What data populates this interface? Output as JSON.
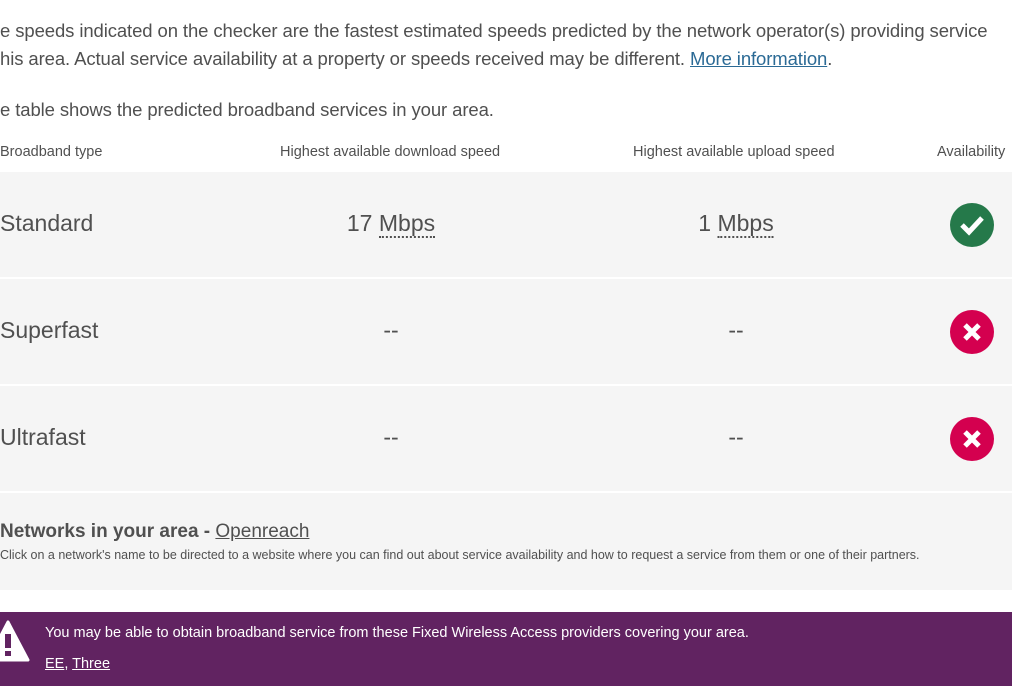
{
  "intro": {
    "line1": "e speeds indicated on the checker are the fastest estimated speeds predicted by the network operator(s) providing service",
    "line2": "his area. Actual service availability at a property or speeds received may be different. ",
    "more_link": "More information",
    "line2_end": ".",
    "line3": "e table shows the predicted broadband services in your area."
  },
  "table": {
    "headers": [
      "Broadband type",
      "Highest available download speed",
      "Highest available upload speed",
      "Availability"
    ],
    "rows": [
      {
        "type": "Standard",
        "download": "17",
        "download_unit": "Mbps",
        "upload": "1",
        "upload_unit": "Mbps",
        "available": true,
        "icon": "check-circle-icon"
      },
      {
        "type": "Superfast",
        "download": "--",
        "upload": "--",
        "available": false,
        "icon": "cross-circle-icon"
      },
      {
        "type": "Ultrafast",
        "download": "--",
        "upload": "--",
        "available": false,
        "icon": "cross-circle-icon"
      }
    ]
  },
  "networks": {
    "title": "Networks in your area - ",
    "link": "Openreach",
    "desc": "Click on a network's name to be directed to a website where you can find out about service availability and how to request a service from them or one of their partners."
  },
  "banner": {
    "text": "You may be able to obtain broadband service from these Fixed Wireless Access providers covering your area.",
    "links": [
      "EE",
      "Three"
    ],
    "sep": ", ",
    "icon": "warning-icon"
  },
  "colors": {
    "available": "#25794a",
    "unavailable": "#d4004f",
    "banner": "#612361",
    "link": "#2b6a95"
  }
}
